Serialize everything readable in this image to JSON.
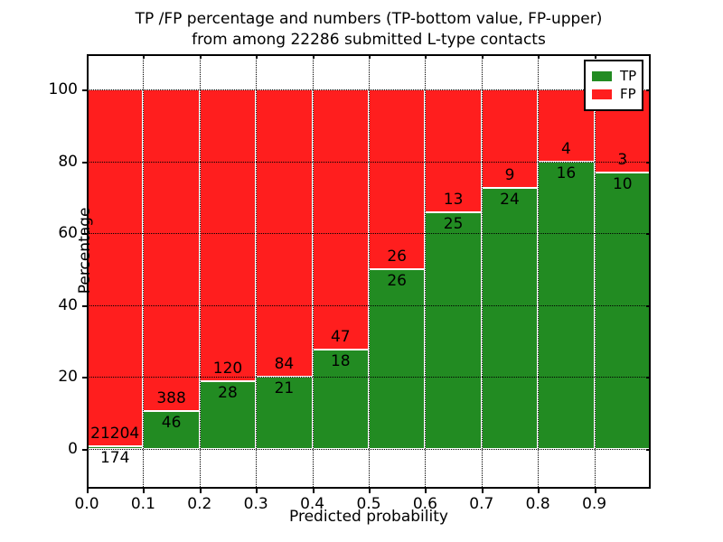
{
  "figure": {
    "title_line1": "TP /FP percentage and numbers (TP-bottom value, FP-upper)",
    "title_line2": "from among 22286 submitted L-type contacts"
  },
  "chart_data": {
    "type": "bar",
    "stacked": true,
    "title": "TP /FP percentage and numbers (TP-bottom value, FP-upper)\nfrom among 22286 submitted L-type contacts",
    "xlabel": "Predicted probability",
    "ylabel": "Percentage",
    "total_contacts": 22286,
    "bin_edges": [
      0.0,
      0.1,
      0.2,
      0.3,
      0.4,
      0.5,
      0.6,
      0.7,
      0.8,
      0.9,
      1.0
    ],
    "xtick_labels": [
      "0.0",
      "0.1",
      "0.2",
      "0.3",
      "0.4",
      "0.5",
      "0.6",
      "0.7",
      "0.8",
      "0.9"
    ],
    "ytick_values": [
      0,
      20,
      40,
      60,
      80,
      100
    ],
    "ylim": [
      -11,
      110
    ],
    "grid": "dotted",
    "legend": {
      "position": "upper right",
      "entries": [
        {
          "label": "TP",
          "color": "#228b22"
        },
        {
          "label": "FP",
          "color": "#ff1e1e"
        }
      ]
    },
    "series": [
      {
        "name": "TP",
        "color": "#228b22",
        "counts": [
          174,
          46,
          28,
          21,
          18,
          26,
          25,
          24,
          16,
          10
        ]
      },
      {
        "name": "FP",
        "color": "#ff1e1e",
        "counts": [
          21204,
          388,
          120,
          84,
          47,
          26,
          13,
          9,
          4,
          3
        ]
      }
    ],
    "tp_percentages": [
      0.81,
      10.6,
      18.92,
      20.0,
      27.69,
      50.0,
      65.79,
      72.73,
      80.0,
      76.92
    ]
  }
}
